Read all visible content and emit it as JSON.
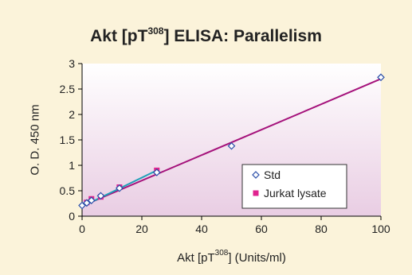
{
  "chart_data": {
    "type": "scatter",
    "title": "Akt [pT308] ELISA: Parallelism",
    "title_parts": {
      "main": "Akt [pT",
      "sup": "308",
      "rest": "] ELISA: Parallelism"
    },
    "xlabel": "Akt [pT308] (Units/ml)",
    "xlabel_parts": {
      "main": "Akt [pT",
      "sup": "308",
      "rest": "] (Units/ml)"
    },
    "ylabel": "O. D. 450 nm",
    "xlim": [
      0,
      100
    ],
    "ylim": [
      0,
      3
    ],
    "x_ticks": [
      "0",
      "20",
      "40",
      "60",
      "80",
      "100"
    ],
    "y_ticks": [
      "0",
      "0.5",
      "1",
      "1.5",
      "2",
      "2.5",
      "3"
    ],
    "grid": false,
    "legend_position": "lower-right",
    "series": [
      {
        "name": "Std",
        "marker": "diamond",
        "color": "#2B4FA8",
        "x": [
          0,
          1.56,
          3.13,
          6.25,
          12.5,
          25,
          50,
          100
        ],
        "y": [
          0.21,
          0.26,
          0.31,
          0.4,
          0.55,
          0.86,
          1.38,
          2.73
        ],
        "trendline": {
          "x": [
            0,
            100
          ],
          "y": [
            0.2,
            2.7
          ],
          "color": "#A5127B"
        }
      },
      {
        "name": "Jurkat lysate",
        "marker": "square",
        "color": "#E0238F",
        "x": [
          1.56,
          3.13,
          6.25,
          12.5,
          25
        ],
        "y": [
          0.27,
          0.34,
          0.38,
          0.57,
          0.9
        ],
        "trendline": {
          "x": [
            0,
            25
          ],
          "y": [
            0.19,
            0.9
          ],
          "color": "#1FA0B8"
        }
      }
    ]
  }
}
